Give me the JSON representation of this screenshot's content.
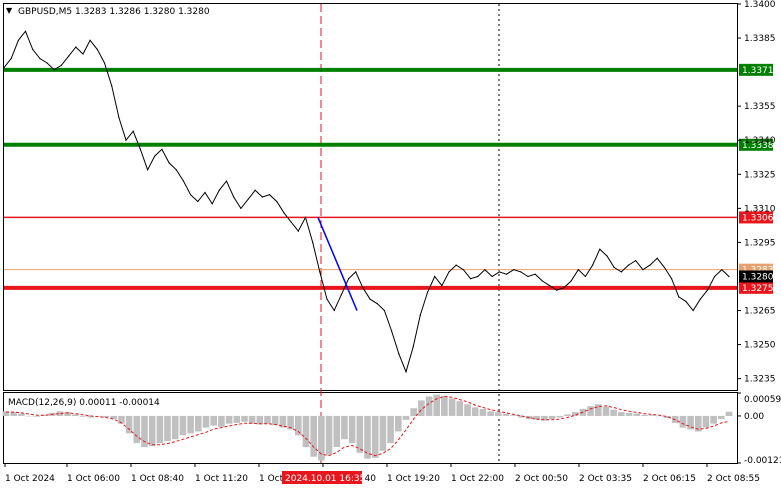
{
  "chart_data": [
    {
      "type": "line",
      "title": "GBPUSD,M5  1.3283 1.3286 1.3280 1.3280",
      "y_ticks": [
        "1.3400",
        "1.3385",
        "1.3371",
        "1.3355",
        "1.3340",
        "1.3338",
        "1.3325",
        "1.3310",
        "1.3306",
        "1.3295",
        "1.3280",
        "1.3265",
        "1.3250",
        "1.3235"
      ],
      "x_ticks": [
        "1 Oct 2024",
        "1 Oct 06:00",
        "1 Oct 08:40",
        "1 Oct 11:20",
        "1 Oct 14:00",
        "1 Oct 16:40",
        "1 Oct 19:20",
        "1 Oct 22:00",
        "2 Oct 00:50",
        "2 Oct 03:35",
        "2 Oct 06:15",
        "2 Oct 08:55"
      ],
      "ylim": [
        1.323,
        1.34
      ],
      "price_series": [
        1.3372,
        1.3376,
        1.3384,
        1.3388,
        1.338,
        1.3376,
        1.3374,
        1.3371,
        1.3373,
        1.3377,
        1.3381,
        1.3378,
        1.3384,
        1.338,
        1.3374,
        1.3364,
        1.335,
        1.334,
        1.3344,
        1.3336,
        1.3327,
        1.3333,
        1.3336,
        1.333,
        1.3327,
        1.3322,
        1.3316,
        1.3313,
        1.3317,
        1.3312,
        1.3318,
        1.3322,
        1.3315,
        1.331,
        1.3314,
        1.3318,
        1.3315,
        1.3316,
        1.3313,
        1.3308,
        1.3304,
        1.33,
        1.3306,
        1.3295,
        1.3282,
        1.327,
        1.3265,
        1.3272,
        1.3279,
        1.3282,
        1.3275,
        1.327,
        1.3268,
        1.3265,
        1.3256,
        1.3246,
        1.3238,
        1.3249,
        1.3263,
        1.3273,
        1.328,
        1.3276,
        1.3282,
        1.3285,
        1.3283,
        1.3279,
        1.328,
        1.3283,
        1.328,
        1.3282,
        1.3281,
        1.3283,
        1.3282,
        1.328,
        1.3281,
        1.3278,
        1.3276,
        1.3274,
        1.3275,
        1.3278,
        1.3283,
        1.328,
        1.3285,
        1.3292,
        1.3289,
        1.3284,
        1.3282,
        1.3285,
        1.3287,
        1.3283,
        1.3285,
        1.3288,
        1.3284,
        1.3279,
        1.3271,
        1.3269,
        1.3265,
        1.327,
        1.3274,
        1.328,
        1.3283,
        1.328
      ],
      "levels": [
        {
          "value": 1.3371,
          "label": "1.3371",
          "color": "#008000"
        },
        {
          "value": 1.3338,
          "label": "1.3338",
          "color": "#008000"
        },
        {
          "value": 1.3306,
          "label": "1.3306",
          "color": "#e8161c"
        },
        {
          "value": 1.3275,
          "label": "1.3275",
          "color": "#e8161c"
        },
        {
          "value": 1.3283,
          "label": "1.3283",
          "color": "#e8a070"
        },
        {
          "value": 1.328,
          "label": "1.3280",
          "color": "#000000"
        }
      ],
      "trend_segment": {
        "from_value": 1.3306,
        "to_value": 1.3265,
        "color": "#0000ff"
      },
      "session_marker": {
        "label": "2024.10.01 16:35",
        "color": "#e8161c"
      },
      "grid": false
    },
    {
      "type": "bar",
      "title": "MACD(12,26,9) 0.00011 -0.00014",
      "y_ticks": [
        "0.00059",
        "0.00",
        "-0.00121"
      ],
      "ylim": [
        -0.00121,
        0.00059
      ],
      "histogram": [
        0.00012,
        0.0001,
        6e-05,
        0.0,
        -2e-05,
        3e-05,
        8e-05,
        0.00012,
        0.0001,
        4e-05,
        -2e-05,
        -4e-05,
        -1e-05,
        -3e-05,
        -8e-05,
        -0.0002,
        -0.00045,
        -0.0007,
        -0.0008,
        -0.00078,
        -0.0007,
        -0.00065,
        -0.0006,
        -0.0005,
        -0.00045,
        -0.0004,
        -0.0003,
        -0.00025,
        -0.00028,
        -0.0002,
        -0.00018,
        -0.00015,
        -0.0002,
        -0.00022,
        -0.0002,
        -0.00024,
        -0.0003,
        -0.00035,
        -0.0005,
        -0.0008,
        -0.00105,
        -0.00115,
        -0.001,
        -0.0008,
        -0.0006,
        -0.0007,
        -0.00095,
        -0.0011,
        -0.00108,
        -0.0009,
        -0.0007,
        -0.0004,
        -0.0001,
        0.0002,
        0.0004,
        0.0005,
        0.00055,
        0.00052,
        0.00045,
        0.00038,
        0.0003,
        0.00022,
        0.00018,
        0.00012,
        0.0001,
        6e-05,
        2e-05,
        -4e-05,
        -8e-05,
        -0.0001,
        -0.00012,
        -8e-05,
        -4e-05,
        4e-05,
        0.0001,
        0.00018,
        0.00025,
        0.0003,
        0.00024,
        0.00016,
        0.0001,
        8e-05,
        6e-05,
        3e-05,
        2e-05,
        1e-05,
        -6e-05,
        -0.00018,
        -0.0003,
        -0.00035,
        -0.0004,
        -0.0003,
        -0.0002,
        -8e-05,
        0.00011
      ],
      "signal": [
        0.0001,
        0.0001,
        8e-05,
        5e-05,
        2e-05,
        2e-05,
        4e-05,
        6e-05,
        8e-05,
        6e-05,
        3e-05,
        0.0,
        -2e-05,
        -4e-05,
        -8e-05,
        -0.00018,
        -0.00034,
        -0.00052,
        -0.00066,
        -0.00074,
        -0.00074,
        -0.00071,
        -0.00066,
        -0.0006,
        -0.00054,
        -0.00048,
        -0.00042,
        -0.00034,
        -0.0003,
        -0.00026,
        -0.00022,
        -0.00019,
        -0.00019,
        -0.0002,
        -0.0002,
        -0.00022,
        -0.00026,
        -0.0003,
        -0.0004,
        -0.00058,
        -0.0008,
        -0.00098,
        -0.00102,
        -0.00094,
        -0.0008,
        -0.00076,
        -0.00084,
        -0.00096,
        -0.00102,
        -0.00096,
        -0.00084,
        -0.00062,
        -0.00036,
        -8e-05,
        0.00016,
        0.00032,
        0.00044,
        0.0005,
        0.00048,
        0.00042,
        0.00036,
        0.00028,
        0.00022,
        0.00016,
        0.00012,
        8e-05,
        4e-05,
        0.0,
        -4e-05,
        -8e-05,
        -0.0001,
        -0.0001,
        -8e-05,
        -4e-05,
        2e-05,
        0.0001,
        0.00018,
        0.00024,
        0.00026,
        0.00022,
        0.00016,
        0.00012,
        9e-05,
        6e-05,
        4e-05,
        2e-05,
        -2e-05,
        -0.0001,
        -0.0002,
        -0.00028,
        -0.00034,
        -0.00032,
        -0.00026,
        -0.00018,
        -0.00014
      ],
      "histogram_color": "#c0c0c0",
      "signal_color": "#e8161c",
      "grid": false
    }
  ]
}
